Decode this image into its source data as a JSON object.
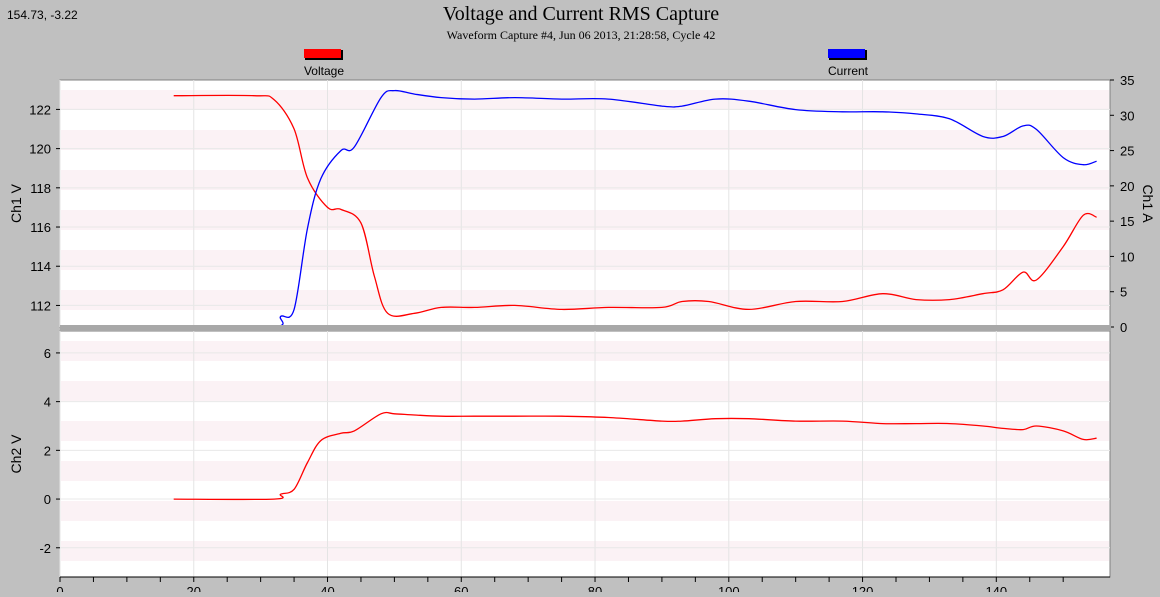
{
  "coordinate_readout": "154.73, -3.22",
  "chart_data": {
    "type": "line",
    "title": "Voltage and Current RMS Capture",
    "subtitle": "Waveform Capture #4, Jun 06 2013, 21:28:58,  Cycle 42",
    "legend": [
      {
        "label": "Voltage",
        "color": "#ff0000"
      },
      {
        "label": "Current",
        "color": "#0000ff"
      }
    ],
    "legend_placement": "top",
    "grid": true,
    "x": {
      "ticks": [
        0,
        20,
        40,
        60,
        80,
        100,
        120,
        140
      ],
      "tick_labels": [
        "0",
        "20",
        "40",
        "60",
        "80",
        "100",
        "120",
        "140"
      ],
      "range": [
        0,
        157
      ]
    },
    "panels": [
      {
        "name": "upper",
        "left_axis": {
          "label": "Ch1 V",
          "range": [
            110.9,
            123.5
          ],
          "ticks": [
            112,
            114,
            116,
            118,
            120,
            122
          ]
        },
        "right_axis": {
          "label": "Ch1 A",
          "range": [
            0,
            35
          ],
          "ticks": [
            0,
            5,
            10,
            15,
            20,
            25,
            30,
            35
          ]
        },
        "series": [
          {
            "name": "Voltage",
            "axis": "left",
            "color": "#ff0000",
            "x": [
              17,
              29,
              32,
              35,
              37,
              40,
              42,
              45,
              47,
              49,
              53,
              57,
              62,
              68,
              75,
              82,
              90,
              93,
              97,
              103,
              110,
              117,
              123,
              128,
              133,
              138,
              141,
              144,
              146,
              150,
              153,
              155
            ],
            "y": [
              122.7,
              122.7,
              122.5,
              121,
              118.5,
              117,
              116.9,
              116.2,
              113.5,
              111.6,
              111.6,
              111.9,
              111.9,
              112,
              111.8,
              111.9,
              111.9,
              112.2,
              112.2,
              111.8,
              112.2,
              112.2,
              112.6,
              112.3,
              112.3,
              112.6,
              112.8,
              113.7,
              113.3,
              115,
              116.6,
              116.5
            ]
          },
          {
            "name": "Current",
            "axis": "right",
            "color": "#0000ff",
            "x": [
              17,
              32,
              33,
              35,
              37,
              39,
              42,
              44,
              48,
              50,
              53,
              57,
              62,
              68,
              75,
              82,
              90,
              93,
              98,
              103,
              110,
              117,
              123,
              128,
              133,
              138,
              141,
              144,
              146,
              150,
              153,
              155
            ],
            "y": [
              0,
              0,
              1.5,
              2.5,
              14,
              21,
              25,
              25.5,
              32.5,
              33.5,
              33,
              32.5,
              32.3,
              32.5,
              32.3,
              32.3,
              31.3,
              31.3,
              32.3,
              32,
              30.8,
              30.5,
              30.5,
              30.2,
              29.5,
              27,
              27,
              28.5,
              28,
              24,
              23,
              23.5
            ]
          }
        ]
      },
      {
        "name": "lower",
        "left_axis": {
          "label": "Ch2 V",
          "range": [
            -3.2,
            6.9
          ],
          "ticks": [
            -2,
            0,
            2,
            4,
            6
          ]
        },
        "series": [
          {
            "name": "Ch2 V",
            "axis": "left",
            "color": "#ff0000",
            "x": [
              17,
              32,
              33,
              35,
              37,
              39,
              42,
              44,
              48,
              50,
              53,
              57,
              62,
              68,
              75,
              82,
              90,
              93,
              98,
              103,
              110,
              117,
              123,
              128,
              133,
              138,
              141,
              144,
              146,
              150,
              153,
              155
            ],
            "y": [
              0,
              0,
              0.2,
              0.4,
              1.5,
              2.4,
              2.7,
              2.8,
              3.5,
              3.5,
              3.45,
              3.4,
              3.4,
              3.4,
              3.4,
              3.35,
              3.2,
              3.2,
              3.3,
              3.3,
              3.2,
              3.2,
              3.1,
              3.1,
              3.1,
              3,
              2.9,
              2.85,
              3,
              2.8,
              2.45,
              2.5
            ]
          }
        ]
      }
    ]
  }
}
